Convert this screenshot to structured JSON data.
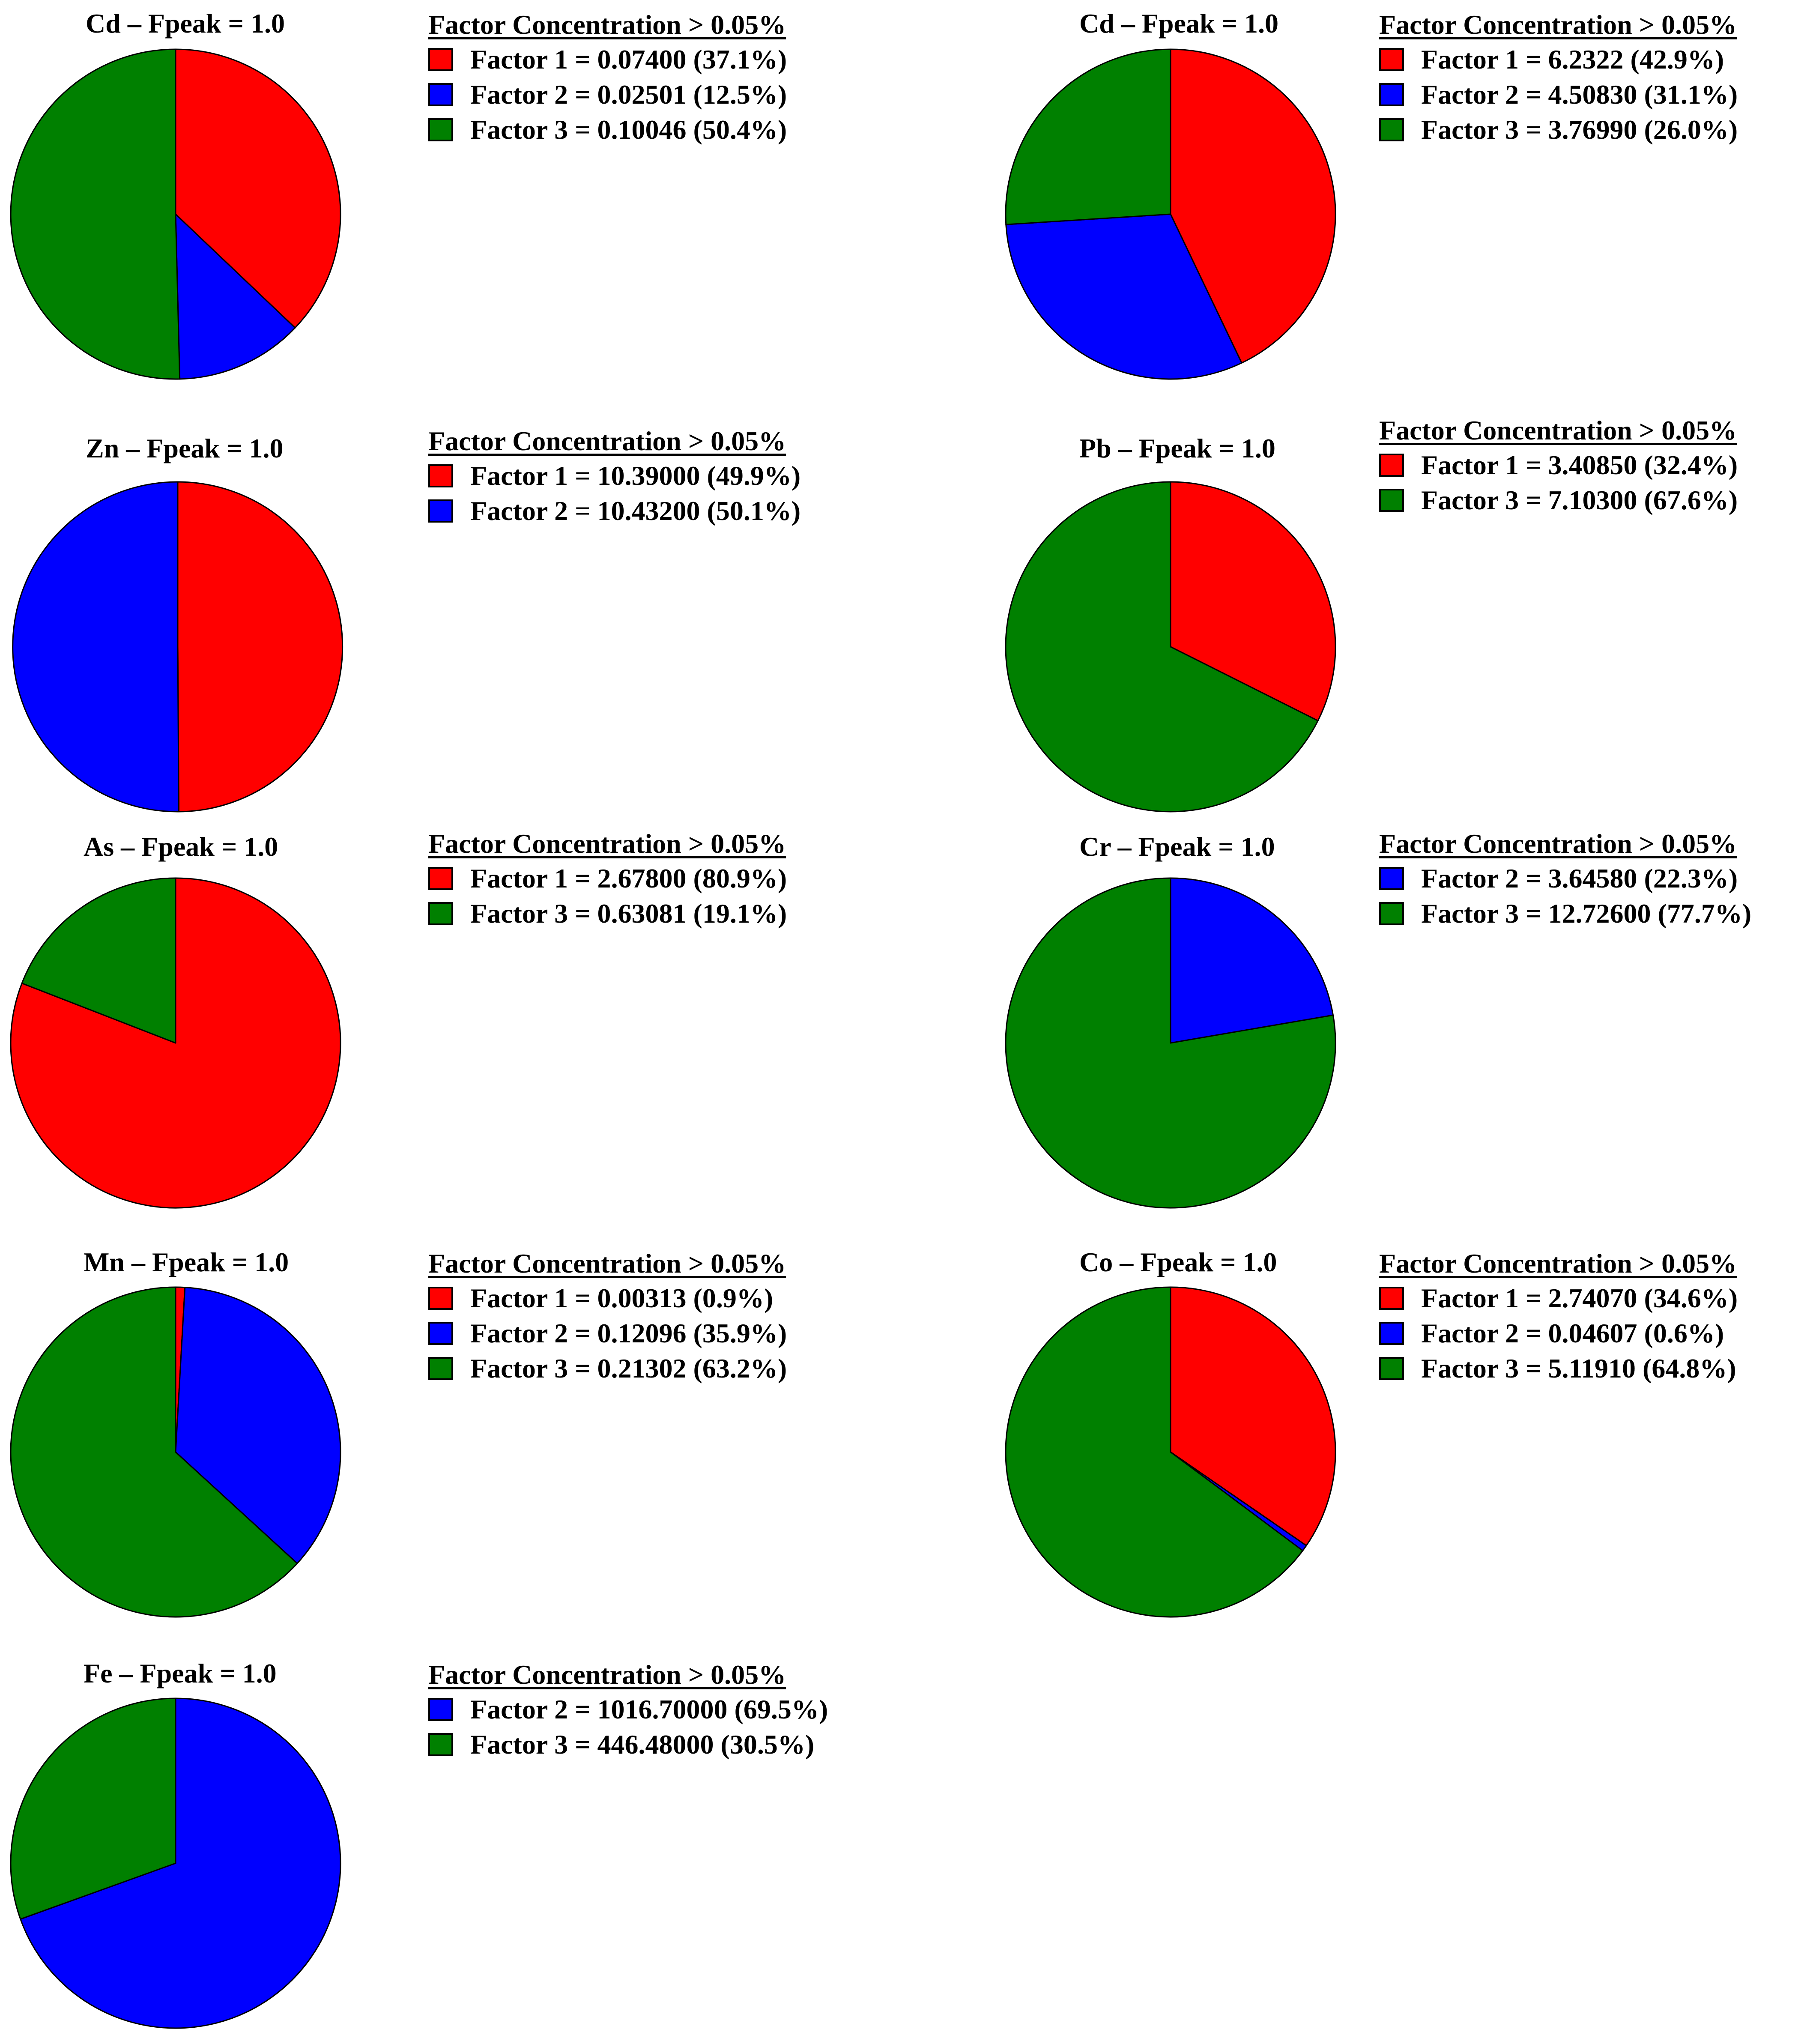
{
  "colors": {
    "factor_1": "#ff0000",
    "factor_2": "#0000ff",
    "factor_3": "#008000"
  },
  "chart_data": [
    {
      "type": "pie",
      "title": "Cd – Fpeak = 1.0",
      "legend_title": "Factor Concentration > 0.05%",
      "slices": [
        {
          "factor": "factor_1",
          "value": 0.074,
          "percent": 37.1,
          "label": "Factor 1 = 0.07400 (37.1%)"
        },
        {
          "factor": "factor_2",
          "value": 0.02501,
          "percent": 12.5,
          "label": "Factor 2 = 0.02501 (12.5%)"
        },
        {
          "factor": "factor_3",
          "value": 0.10046,
          "percent": 50.4,
          "label": "Factor 3 = 0.10046 (50.4%)"
        }
      ]
    },
    {
      "type": "pie",
      "title": "Cd – Fpeak = 1.0",
      "legend_title": "Factor Concentration > 0.05%",
      "slices": [
        {
          "factor": "factor_1",
          "value": 6.2322,
          "percent": 42.9,
          "label": "Factor 1 = 6.2322 (42.9%)"
        },
        {
          "factor": "factor_2",
          "value": 4.5083,
          "percent": 31.1,
          "label": "Factor 2 = 4.50830 (31.1%)"
        },
        {
          "factor": "factor_3",
          "value": 3.7699,
          "percent": 26.0,
          "label": "Factor 3 = 3.76990 (26.0%)"
        }
      ]
    },
    {
      "type": "pie",
      "title": "Zn – Fpeak = 1.0",
      "legend_title": "Factor Concentration > 0.05%",
      "slices": [
        {
          "factor": "factor_1",
          "value": 10.39,
          "percent": 49.9,
          "label": "Factor 1 = 10.39000 (49.9%)"
        },
        {
          "factor": "factor_2",
          "value": 10.432,
          "percent": 50.1,
          "label": "Factor 2 = 10.43200 (50.1%)"
        }
      ]
    },
    {
      "type": "pie",
      "title": "Pb – Fpeak = 1.0",
      "legend_title": "Factor Concentration > 0.05%",
      "slices": [
        {
          "factor": "factor_1",
          "value": 3.4085,
          "percent": 32.4,
          "label": "Factor 1 = 3.40850 (32.4%)"
        },
        {
          "factor": "factor_3",
          "value": 7.103,
          "percent": 67.6,
          "label": "Factor 3 = 7.10300 (67.6%)"
        }
      ]
    },
    {
      "type": "pie",
      "title": "As – Fpeak = 1.0",
      "legend_title": "Factor Concentration > 0.05%",
      "slices": [
        {
          "factor": "factor_1",
          "value": 2.678,
          "percent": 80.9,
          "label": "Factor 1 = 2.67800 (80.9%)"
        },
        {
          "factor": "factor_3",
          "value": 0.63081,
          "percent": 19.1,
          "label": "Factor 3 = 0.63081 (19.1%)"
        }
      ]
    },
    {
      "type": "pie",
      "title": "Cr – Fpeak = 1.0",
      "legend_title": "Factor Concentration > 0.05%",
      "slices": [
        {
          "factor": "factor_2",
          "value": 3.6458,
          "percent": 22.3,
          "label": "Factor 2 = 3.64580 (22.3%)"
        },
        {
          "factor": "factor_3",
          "value": 12.726,
          "percent": 77.7,
          "label": "Factor 3 = 12.72600 (77.7%)"
        }
      ]
    },
    {
      "type": "pie",
      "title": "Mn – Fpeak = 1.0",
      "legend_title": "Factor Concentration > 0.05%",
      "slices": [
        {
          "factor": "factor_1",
          "value": 0.00313,
          "percent": 0.9,
          "label": "Factor 1 = 0.00313 (0.9%)"
        },
        {
          "factor": "factor_2",
          "value": 0.12096,
          "percent": 35.9,
          "label": "Factor 2 = 0.12096 (35.9%)"
        },
        {
          "factor": "factor_3",
          "value": 0.21302,
          "percent": 63.2,
          "label": "Factor 3 = 0.21302 (63.2%)"
        }
      ]
    },
    {
      "type": "pie",
      "title": "Co – Fpeak = 1.0",
      "legend_title": "Factor Concentration > 0.05%",
      "slices": [
        {
          "factor": "factor_1",
          "value": 2.7407,
          "percent": 34.6,
          "label": "Factor 1 = 2.74070 (34.6%)"
        },
        {
          "factor": "factor_2",
          "value": 0.04607,
          "percent": 0.6,
          "label": "Factor 2 = 0.04607 (0.6%)"
        },
        {
          "factor": "factor_3",
          "value": 5.1191,
          "percent": 64.8,
          "label": "Factor 3 = 5.11910 (64.8%)"
        }
      ]
    },
    {
      "type": "pie",
      "title": "Fe – Fpeak = 1.0",
      "legend_title": "Factor Concentration > 0.05%",
      "slices": [
        {
          "factor": "factor_2",
          "value": 1016.7,
          "percent": 69.5,
          "label": "Factor 2 = 1016.70000 (69.5%)"
        },
        {
          "factor": "factor_3",
          "value": 446.48,
          "percent": 30.5,
          "label": "Factor 3 = 446.48000 (30.5%)"
        }
      ]
    }
  ]
}
